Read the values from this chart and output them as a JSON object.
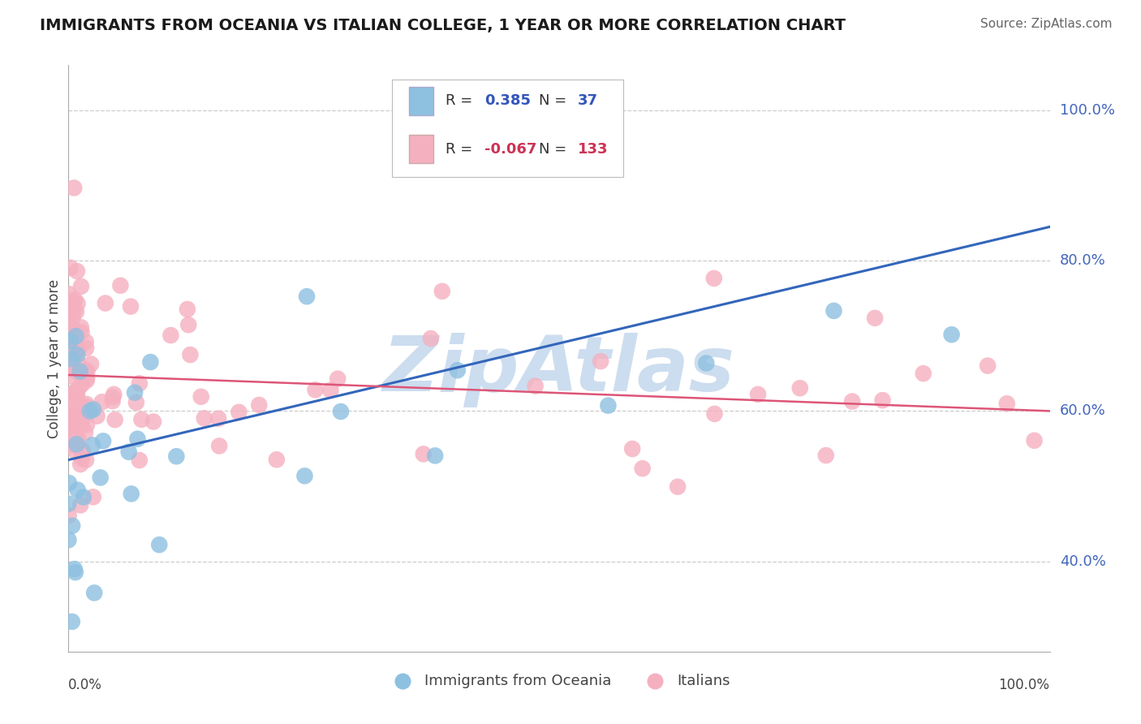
{
  "title": "IMMIGRANTS FROM OCEANIA VS ITALIAN COLLEGE, 1 YEAR OR MORE CORRELATION CHART",
  "source": "Source: ZipAtlas.com",
  "ylabel": "College, 1 year or more",
  "xlabel_bottom_left": "0.0%",
  "xlabel_bottom_right": "100.0%",
  "legend_blue_r_val": "0.385",
  "legend_blue_n_val": "37",
  "legend_pink_r_val": "-0.067",
  "legend_pink_n_val": "133",
  "legend_label_blue": "Immigrants from Oceania",
  "legend_label_pink": "Italians",
  "xlim": [
    0.0,
    1.0
  ],
  "ylim": [
    0.28,
    1.06
  ],
  "yticks": [
    0.4,
    0.6,
    0.8,
    1.0
  ],
  "ytick_labels": [
    "40.0%",
    "60.0%",
    "80.0%",
    "100.0%"
  ],
  "grid_color": "#cccccc",
  "blue_color": "#8ec0e0",
  "blue_line_color": "#3366bb",
  "pink_color": "#f5b0c0",
  "pink_line_color": "#dd5577",
  "watermark": "ZipAtlas",
  "watermark_color": "#ccddef",
  "background_color": "#ffffff",
  "blue_trend_x": [
    0.0,
    1.0
  ],
  "blue_trend_y": [
    0.535,
    0.845
  ],
  "pink_trend_x": [
    0.0,
    1.0
  ],
  "pink_trend_y": [
    0.648,
    0.6
  ],
  "title_fontsize": 14,
  "source_fontsize": 11,
  "tick_fontsize": 13,
  "ylabel_fontsize": 12,
  "legend_fontsize": 13
}
